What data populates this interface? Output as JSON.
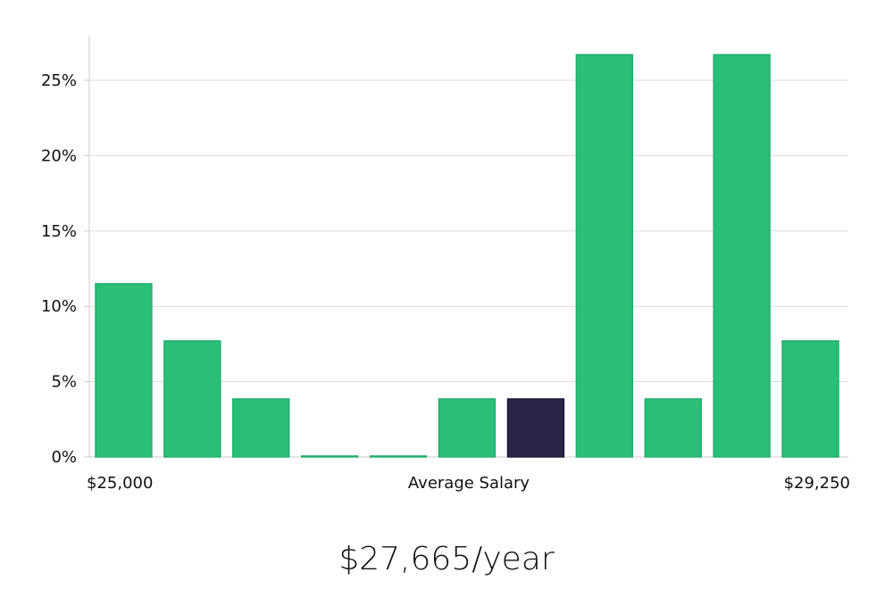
{
  "chart_data": {
    "type": "bar",
    "x_min_label": "$25,000",
    "x_max_label": "$29,250",
    "xlabel": "Average Salary",
    "yticks": [
      "0%",
      "5%",
      "10%",
      "15%",
      "20%",
      "25%"
    ],
    "ylim": [
      0,
      28
    ],
    "values": [
      11.5,
      7.7,
      3.85,
      0,
      0,
      3.85,
      3.85,
      26.7,
      3.85,
      26.7,
      7.7
    ],
    "highlight_index": 6,
    "grid": true
  },
  "colors": {
    "bar": "#2abf78",
    "bar_stroke": "#1fb06c",
    "highlight": "#29264a",
    "grid": "#dddddd",
    "axis": "#cccccc"
  },
  "salary_label": "$27,665/year"
}
